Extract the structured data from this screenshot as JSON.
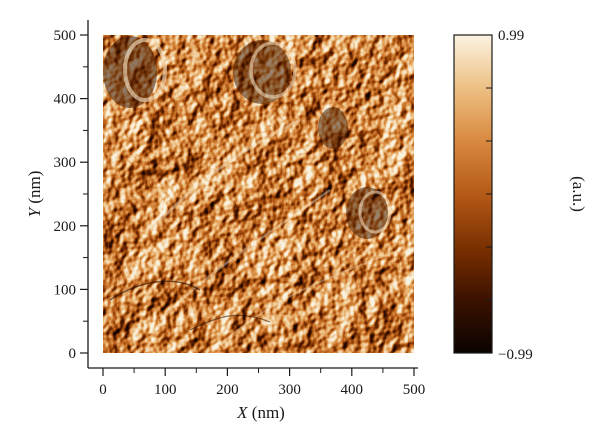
{
  "chart_data": {
    "type": "heatmap",
    "description_kind": "AFM phase image",
    "x": {
      "label_var": "X",
      "label_unit": " (nm)",
      "range": [
        0,
        500
      ],
      "ticks": [
        0,
        100,
        200,
        300,
        400,
        500
      ]
    },
    "y": {
      "label_var": "Y",
      "label_unit": " (nm)",
      "range": [
        0,
        500
      ],
      "ticks": [
        0,
        100,
        200,
        300,
        400,
        500
      ]
    },
    "colorbar": {
      "min": -0.99,
      "max": 0.99,
      "min_label": "−0.99",
      "max_label": "0.99",
      "unit_label": "(a.u.)",
      "colormap": [
        "#0a0300",
        "#3d1200",
        "#7a3000",
        "#b55a18",
        "#d98a40",
        "#ecbf82",
        "#fbf3e2"
      ]
    },
    "accent_colors": {
      "axis": "#1a1a1a",
      "dark_pit": "#3a1400",
      "bright_edge": "#f7e4c4"
    }
  }
}
